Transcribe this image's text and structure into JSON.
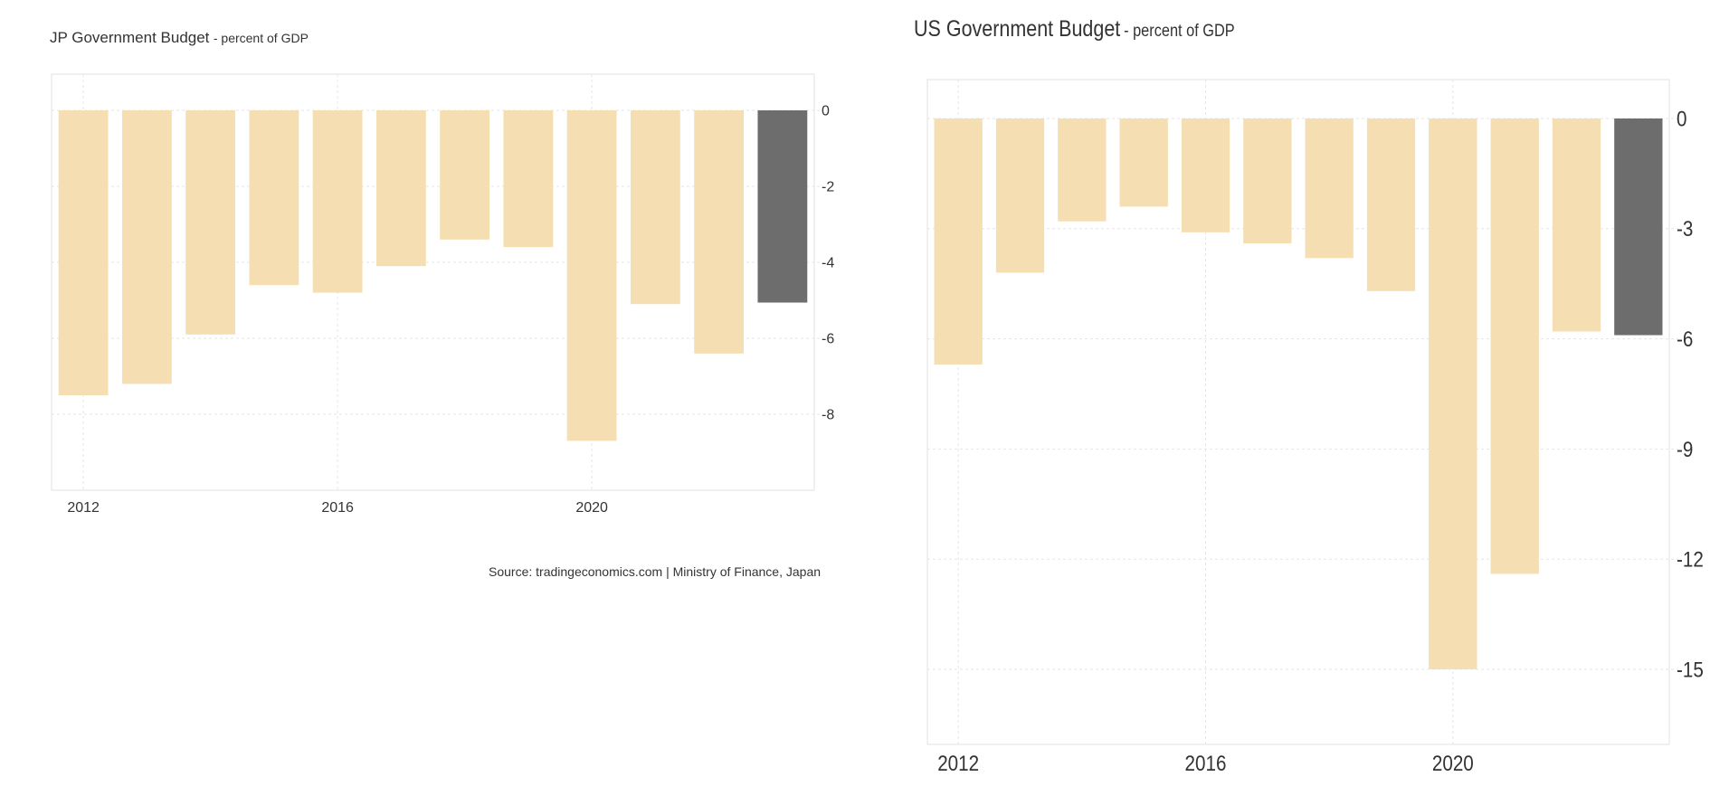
{
  "charts": {
    "jp": {
      "title": "JP Government Budget",
      "subtitle": "- percent of GDP",
      "source": "Source: tradingeconomics.com | Ministry of Finance, Japan"
    },
    "us": {
      "title": "US Government Budget",
      "subtitle": "- percent of GDP"
    }
  },
  "colors": {
    "bar": "#f4deb2",
    "bar_latest": "#6d6d6d",
    "grid": "#e6e6e6",
    "frame": "#e2e2e2"
  },
  "chart_data": [
    {
      "type": "bar",
      "title": "JP Government Budget",
      "subtitle": "- percent of GDP",
      "categories": [
        "2012",
        "2013",
        "2014",
        "2015",
        "2016",
        "2017",
        "2018",
        "2019",
        "2020",
        "2021",
        "2022",
        "2023"
      ],
      "values": [
        -7.5,
        -7.2,
        -5.9,
        -4.6,
        -4.8,
        -4.1,
        -3.4,
        -3.6,
        -8.7,
        -5.1,
        -6.4,
        -5.06
      ],
      "highlight_last": true,
      "x_tick_labels": [
        "2012",
        "2016",
        "2020"
      ],
      "y_ticks": [
        0,
        -2,
        -4,
        -6,
        -8
      ],
      "ylim": [
        -10,
        1
      ],
      "grid": true,
      "y_axis_position": "right",
      "source": "Source: tradingeconomics.com | Ministry of Finance, Japan"
    },
    {
      "type": "bar",
      "title": "US Government Budget",
      "subtitle": "- percent of GDP",
      "categories": [
        "2012",
        "2013",
        "2014",
        "2015",
        "2016",
        "2017",
        "2018",
        "2019",
        "2020",
        "2021",
        "2022",
        "2023"
      ],
      "values": [
        -6.7,
        -4.2,
        -2.8,
        -2.4,
        -3.1,
        -3.4,
        -3.8,
        -4.7,
        -15.0,
        -12.4,
        -5.8,
        -5.9
      ],
      "highlight_last": true,
      "x_tick_labels": [
        "2012",
        "2016",
        "2020"
      ],
      "y_ticks": [
        0,
        -3,
        -6,
        -9,
        -12,
        -15
      ],
      "ylim": [
        -17,
        1
      ],
      "grid": true,
      "y_axis_position": "right"
    }
  ]
}
